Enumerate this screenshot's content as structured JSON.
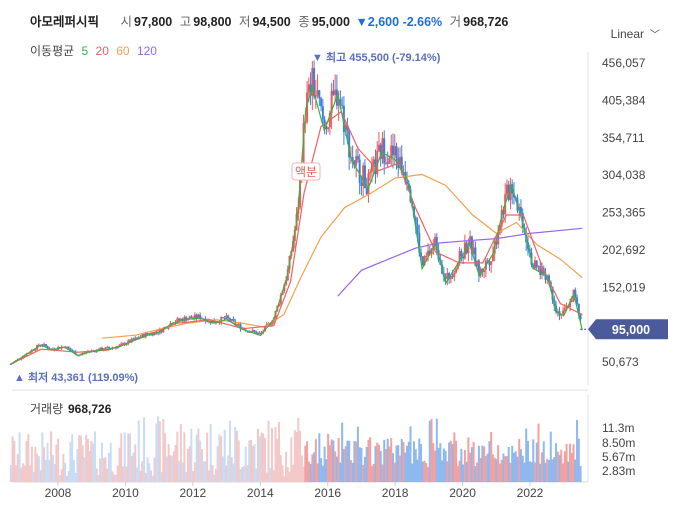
{
  "header": {
    "name": "아모레퍼시픽",
    "open_label": "시",
    "open": "97,800",
    "high_label": "고",
    "high": "98,800",
    "low_label": "저",
    "low": "94,500",
    "close_label": "종",
    "close": "95,000",
    "change": "▼2,600 -2.66%",
    "volume_label": "거",
    "volume": "968,726"
  },
  "ma_legend": {
    "label": "이동평균",
    "items": [
      {
        "name": "5",
        "color": "#3cb043"
      },
      {
        "name": "20",
        "color": "#f06060"
      },
      {
        "name": "60",
        "color": "#f5a050"
      },
      {
        "name": "120",
        "color": "#9966ee"
      }
    ]
  },
  "scale_label": "Linear",
  "chart_data": {
    "type": "candlestick",
    "y_ticks": [
      "456,057",
      "405,384",
      "354,711",
      "304,038",
      "253,365",
      "202,692",
      "152,019",
      "95,000",
      "50,673"
    ],
    "y_range": [
      35000,
      470000
    ],
    "x_ticks": [
      "2008",
      "2010",
      "2012",
      "2014",
      "2016",
      "2018",
      "2020",
      "2022"
    ],
    "last_price_label": "95,000",
    "annotations": {
      "high": "▼ 최고 455,500 (-79.14%)",
      "low": "▲ 최저 43,361 (119.09%)",
      "split": "액분"
    },
    "volume_title": "거래량",
    "volume_value": "968,726",
    "volume_ticks": [
      "11.3m",
      "8.50m",
      "5.67m",
      "2.83m"
    ],
    "price_path": [
      [
        2006.6,
        48000
      ],
      [
        2007.0,
        60000
      ],
      [
        2007.5,
        75000
      ],
      [
        2007.8,
        68000
      ],
      [
        2008.2,
        72000
      ],
      [
        2008.6,
        60000
      ],
      [
        2008.9,
        65000
      ],
      [
        2009.3,
        68000
      ],
      [
        2009.8,
        72000
      ],
      [
        2010.2,
        80000
      ],
      [
        2010.6,
        88000
      ],
      [
        2011.0,
        92000
      ],
      [
        2011.4,
        105000
      ],
      [
        2011.8,
        110000
      ],
      [
        2012.2,
        112000
      ],
      [
        2012.6,
        105000
      ],
      [
        2013.0,
        110000
      ],
      [
        2013.5,
        96000
      ],
      [
        2014.0,
        88000
      ],
      [
        2014.4,
        110000
      ],
      [
        2014.8,
        170000
      ],
      [
        2015.1,
        250000
      ],
      [
        2015.35,
        400000
      ],
      [
        2015.55,
        430000
      ],
      [
        2015.9,
        370000
      ],
      [
        2016.3,
        420000
      ],
      [
        2016.7,
        330000
      ],
      [
        2017.2,
        290000
      ],
      [
        2017.6,
        340000
      ],
      [
        2018.0,
        330000
      ],
      [
        2018.4,
        300000
      ],
      [
        2018.8,
        180000
      ],
      [
        2019.2,
        215000
      ],
      [
        2019.5,
        160000
      ],
      [
        2019.9,
        190000
      ],
      [
        2020.2,
        215000
      ],
      [
        2020.5,
        170000
      ],
      [
        2020.9,
        200000
      ],
      [
        2021.2,
        260000
      ],
      [
        2021.45,
        295000
      ],
      [
        2021.8,
        240000
      ],
      [
        2022.1,
        180000
      ],
      [
        2022.5,
        170000
      ],
      [
        2022.8,
        120000
      ],
      [
        2023.0,
        115000
      ],
      [
        2023.3,
        145000
      ],
      [
        2023.55,
        95000
      ]
    ],
    "ma20_path": [
      [
        2006.6,
        48000
      ],
      [
        2007.5,
        68000
      ],
      [
        2008.6,
        64000
      ],
      [
        2009.5,
        67000
      ],
      [
        2010.5,
        84000
      ],
      [
        2011.5,
        103000
      ],
      [
        2012.5,
        108000
      ],
      [
        2013.5,
        96000
      ],
      [
        2014.4,
        100000
      ],
      [
        2014.9,
        160000
      ],
      [
        2015.3,
        280000
      ],
      [
        2015.8,
        370000
      ],
      [
        2016.4,
        390000
      ],
      [
        2016.9,
        340000
      ],
      [
        2017.5,
        310000
      ],
      [
        2018.1,
        320000
      ],
      [
        2018.6,
        260000
      ],
      [
        2019.2,
        200000
      ],
      [
        2019.9,
        185000
      ],
      [
        2020.6,
        185000
      ],
      [
        2021.3,
        250000
      ],
      [
        2021.8,
        250000
      ],
      [
        2022.4,
        175000
      ],
      [
        2022.9,
        130000
      ],
      [
        2023.55,
        115000
      ]
    ],
    "ma60_path": [
      [
        2009.3,
        83000
      ],
      [
        2010.3,
        87000
      ],
      [
        2011.0,
        95000
      ],
      [
        2011.8,
        103000
      ],
      [
        2012.7,
        108000
      ],
      [
        2013.5,
        103000
      ],
      [
        2014.1,
        98000
      ],
      [
        2014.7,
        115000
      ],
      [
        2015.2,
        165000
      ],
      [
        2015.8,
        220000
      ],
      [
        2016.5,
        260000
      ],
      [
        2017.3,
        280000
      ],
      [
        2018.0,
        300000
      ],
      [
        2018.8,
        305000
      ],
      [
        2019.5,
        290000
      ],
      [
        2020.3,
        250000
      ],
      [
        2021.0,
        225000
      ],
      [
        2021.6,
        240000
      ],
      [
        2022.2,
        210000
      ],
      [
        2022.9,
        190000
      ],
      [
        2023.55,
        165000
      ]
    ],
    "ma120_path": [
      [
        2016.3,
        140000
      ],
      [
        2017.0,
        175000
      ],
      [
        2017.8,
        190000
      ],
      [
        2018.6,
        205000
      ],
      [
        2019.3,
        212000
      ],
      [
        2020.1,
        215000
      ],
      [
        2021.0,
        218000
      ],
      [
        2022.0,
        225000
      ],
      [
        2023.55,
        232000
      ]
    ]
  }
}
